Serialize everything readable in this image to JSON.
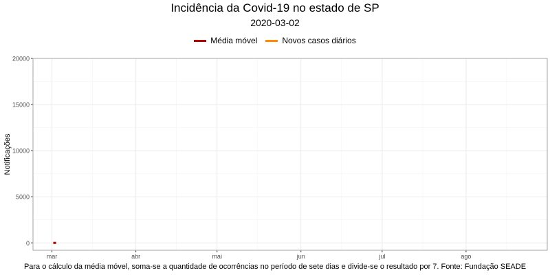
{
  "title": "Incidência da Covid-19 no estado de SP",
  "subtitle": "2020-03-02",
  "caption": "Para o cálculo da média móvel, soma-se a quantidade de ocorrências no período de sete dias e divide-se o resultado por 7. Fonte: Fundação SEADE",
  "colors": {
    "media_movel": "#b30000",
    "novos_casos": "#ff8c00",
    "grid": "#ebebeb",
    "panel_border": "#a6a6a6"
  },
  "legend": {
    "items": [
      {
        "label": "Média móvel",
        "color": "#b30000"
      },
      {
        "label": "Novos casos diários",
        "color": "#ff8c00"
      }
    ]
  },
  "chart_data": {
    "type": "line",
    "title": "Incidência da Covid-19 no estado de SP",
    "subtitle": "2020-03-02",
    "xlabel": "",
    "ylabel": "Notificações",
    "x_ticks": [
      "mar",
      "abr",
      "mai",
      "jun",
      "jul",
      "ago"
    ],
    "y_ticks": [
      0,
      5000,
      10000,
      15000,
      20000
    ],
    "ylim": [
      -800,
      20000
    ],
    "grid": true,
    "legend_position": "top",
    "series": [
      {
        "name": "Média móvel",
        "color": "#b30000",
        "x": [
          "2020-03-02"
        ],
        "values": [
          0
        ]
      },
      {
        "name": "Novos casos diários",
        "color": "#ff8c00",
        "x": [
          "2020-03-02"
        ],
        "values": [
          1
        ]
      }
    ]
  }
}
